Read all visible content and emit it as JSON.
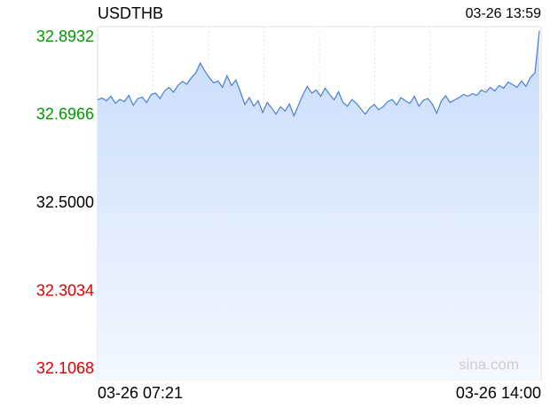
{
  "chart_data": {
    "type": "line",
    "title": "USDTHB",
    "subtitle": "03-26 13:59",
    "watermark": "sina.com",
    "xticks": [
      "03-26 07:21",
      "03-26 14:00"
    ],
    "series": [
      {
        "name": "USDTHB",
        "color": "#4a7fd4",
        "values": [
          32.73,
          32.734,
          32.728,
          32.738,
          32.722,
          32.731,
          32.726,
          32.74,
          32.718,
          32.733,
          32.736,
          32.724,
          32.742,
          32.745,
          32.733,
          32.75,
          32.758,
          32.747,
          32.762,
          32.771,
          32.765,
          32.779,
          32.79,
          32.812,
          32.795,
          32.78,
          32.768,
          32.772,
          32.758,
          32.784,
          32.762,
          32.774,
          32.748,
          32.72,
          32.735,
          32.716,
          32.728,
          32.702,
          32.724,
          32.712,
          32.698,
          32.715,
          32.705,
          32.721,
          32.694,
          32.718,
          32.741,
          32.76,
          32.745,
          32.752,
          32.738,
          32.756,
          32.742,
          32.73,
          32.748,
          32.724,
          32.716,
          32.731,
          32.722,
          32.71,
          32.698,
          32.712,
          32.72,
          32.708,
          32.715,
          32.726,
          32.731,
          32.719,
          32.735,
          32.728,
          32.722,
          32.738,
          32.716,
          32.729,
          32.733,
          32.721,
          32.7,
          32.727,
          32.739,
          32.724,
          32.73,
          32.735,
          32.742,
          32.738,
          32.744,
          32.74,
          32.752,
          32.747,
          32.758,
          32.75,
          32.762,
          32.756,
          32.77,
          32.764,
          32.758,
          32.772,
          32.76,
          32.78,
          32.79,
          32.884
        ]
      }
    ],
    "ylim": [
      32.1068,
      32.8932
    ],
    "yticks": [
      32.8932,
      32.6966,
      {
        "value": 32.5,
        "label": "32.5000"
      },
      32.3034,
      32.1068
    ],
    "ytick_colors": [
      "#009900",
      "#009900",
      "#000000",
      "#e00000",
      "#e00000"
    ],
    "grid": true
  }
}
